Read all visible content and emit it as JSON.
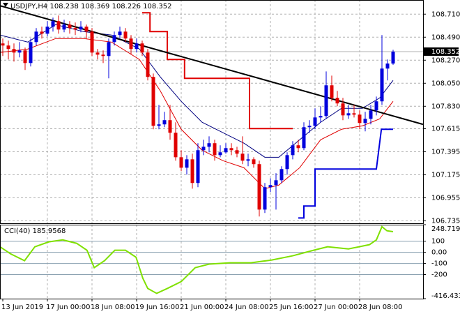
{
  "chart_data": {
    "type": "candlestick",
    "title": "USDJPY,H4",
    "up_color": "#0000dd",
    "down_color": "#e00000",
    "candles": [
      [
        108.43,
        108.477,
        108.31,
        108.41
      ],
      [
        108.41,
        108.457,
        108.277,
        108.377
      ],
      [
        108.377,
        108.43,
        108.257,
        108.343
      ],
      [
        108.343,
        108.443,
        108.297,
        108.363
      ],
      [
        108.363,
        108.39,
        108.177,
        108.243
      ],
      [
        108.243,
        108.477,
        108.21,
        108.443
      ],
      [
        108.443,
        108.577,
        108.41,
        108.543
      ],
      [
        108.543,
        108.59,
        108.477,
        108.523
      ],
      [
        108.523,
        108.643,
        108.497,
        108.59
      ],
      [
        108.59,
        108.677,
        108.543,
        108.643
      ],
      [
        108.643,
        108.697,
        108.523,
        108.563
      ],
      [
        108.563,
        108.657,
        108.537,
        108.61
      ],
      [
        108.61,
        108.643,
        108.523,
        108.577
      ],
      [
        108.577,
        108.63,
        108.51,
        108.563
      ],
      [
        108.563,
        108.643,
        108.537,
        108.59
      ],
      [
        108.59,
        108.61,
        108.477,
        108.543
      ],
      [
        108.543,
        108.577,
        108.31,
        108.343
      ],
      [
        108.343,
        108.377,
        108.277,
        108.323
      ],
      [
        108.323,
        108.363,
        108.243,
        108.31
      ],
      [
        108.31,
        108.477,
        108.097,
        108.443
      ],
      [
        108.443,
        108.543,
        108.41,
        108.51
      ],
      [
        108.51,
        108.59,
        108.477,
        108.543
      ],
      [
        108.543,
        108.577,
        108.443,
        108.477
      ],
      [
        108.477,
        108.51,
        108.323,
        108.377
      ],
      [
        108.377,
        108.477,
        108.343,
        108.43
      ],
      [
        108.43,
        108.457,
        108.31,
        108.343
      ],
      [
        108.343,
        108.377,
        108.077,
        108.11
      ],
      [
        108.11,
        108.143,
        107.61,
        107.643
      ],
      [
        107.643,
        107.843,
        107.61,
        107.657
      ],
      [
        107.657,
        107.777,
        107.63,
        107.697
      ],
      [
        107.697,
        107.843,
        107.51,
        107.577
      ],
      [
        107.577,
        107.677,
        107.31,
        107.343
      ],
      [
        107.343,
        107.41,
        107.21,
        107.243
      ],
      [
        107.243,
        107.363,
        107.177,
        107.323
      ],
      [
        107.323,
        107.377,
        107.043,
        107.097
      ],
      [
        107.097,
        107.477,
        107.057,
        107.41
      ],
      [
        107.41,
        107.51,
        107.363,
        107.443
      ],
      [
        107.443,
        107.543,
        107.39,
        107.477
      ],
      [
        107.477,
        107.51,
        107.31,
        107.363
      ],
      [
        107.363,
        107.457,
        107.343,
        107.39
      ],
      [
        107.39,
        107.477,
        107.377,
        107.43
      ],
      [
        107.43,
        107.477,
        107.363,
        107.41
      ],
      [
        107.41,
        107.443,
        107.343,
        107.377
      ],
      [
        107.377,
        107.543,
        107.277,
        107.31
      ],
      [
        107.31,
        107.377,
        107.257,
        107.323
      ],
      [
        107.323,
        107.343,
        107.243,
        107.277
      ],
      [
        107.277,
        107.31,
        106.777,
        106.843
      ],
      [
        106.843,
        107.097,
        106.81,
        107.057
      ],
      [
        107.057,
        107.143,
        107.01,
        107.077
      ],
      [
        107.077,
        107.19,
        106.843,
        107.123
      ],
      [
        107.123,
        107.257,
        107.097,
        107.23
      ],
      [
        107.23,
        107.39,
        107.177,
        107.363
      ],
      [
        107.363,
        107.497,
        107.323,
        107.457
      ],
      [
        107.457,
        107.51,
        107.39,
        107.43
      ],
      [
        107.43,
        107.677,
        107.41,
        107.63
      ],
      [
        107.63,
        107.697,
        107.577,
        107.643
      ],
      [
        107.643,
        107.81,
        107.61,
        107.723
      ],
      [
        107.723,
        107.83,
        107.677,
        107.737
      ],
      [
        107.737,
        108.163,
        107.71,
        108.03
      ],
      [
        108.03,
        108.123,
        107.877,
        107.91
      ],
      [
        107.91,
        107.977,
        107.83,
        107.857
      ],
      [
        107.857,
        107.91,
        107.697,
        107.743
      ],
      [
        107.743,
        107.843,
        107.71,
        107.763
      ],
      [
        107.763,
        107.843,
        107.723,
        107.75
      ],
      [
        107.75,
        107.79,
        107.61,
        107.67
      ],
      [
        107.67,
        107.777,
        107.59,
        107.71
      ],
      [
        107.71,
        107.843,
        107.657,
        107.79
      ],
      [
        107.79,
        107.923,
        107.743,
        107.877
      ],
      [
        107.877,
        108.51,
        107.843,
        108.19
      ],
      [
        108.19,
        108.277,
        108.077,
        108.238
      ],
      [
        108.238,
        108.369,
        108.226,
        108.352
      ]
    ],
    "xlim": [
      -0.5,
      75.375
    ],
    "xticks": [
      {
        "value": 0,
        "label": "13 Jun 2019"
      },
      {
        "value": 8,
        "label": "17 Jun 00:00"
      },
      {
        "value": 16,
        "label": "18 Jun 08:00"
      },
      {
        "value": 24,
        "label": "19 Jun 16:00"
      },
      {
        "value": 32,
        "label": "21 Jun 00:00"
      },
      {
        "value": 40,
        "label": "24 Jun 08:00"
      },
      {
        "value": 48,
        "label": "25 Jun 16:00"
      },
      {
        "value": 56,
        "label": "27 Jun 00:00"
      },
      {
        "value": 64,
        "label": "28 Jun 08:00"
      }
    ],
    "ylim": [
      106.712,
      108.845
    ],
    "yticks": [
      {
        "value": 108.71,
        "label": "108.710"
      },
      {
        "value": 108.49,
        "label": "108.490"
      },
      {
        "value": 108.27,
        "label": "108.270"
      },
      {
        "value": 108.05,
        "label": "108.050"
      },
      {
        "value": 107.83,
        "label": "107.830"
      },
      107.615,
      107.395,
      107.175,
      106.955,
      106.735
    ],
    "grid": true,
    "overlays": [
      {
        "color": "#000080",
        "line_width": 1,
        "x": [
          -0.5,
          4.5,
          9.5,
          14.5,
          19.5,
          24.5,
          28.25,
          32,
          35.75,
          39.5,
          43.25,
          47,
          49.5,
          53.25,
          57,
          60.75,
          64.5,
          67.6,
          70
        ],
        "values": [
          108.51,
          108.443,
          108.61,
          108.543,
          108.51,
          108.377,
          108.11,
          107.877,
          107.677,
          107.577,
          107.477,
          107.343,
          107.343,
          107.51,
          107.677,
          107.81,
          107.81,
          107.91,
          108.077
        ]
      },
      {
        "color": "#e00000",
        "line_width": 1,
        "x": [
          -0.5,
          4.5,
          9.5,
          14.5,
          19.5,
          24.5,
          28.25,
          32,
          35.75,
          39.5,
          43.25,
          47,
          49.5,
          53.25,
          57,
          60.75,
          64.5,
          67.6,
          70
        ],
        "values": [
          108.343,
          108.377,
          108.477,
          108.477,
          108.443,
          108.277,
          107.977,
          107.61,
          107.41,
          107.31,
          107.243,
          107.043,
          107.077,
          107.243,
          107.51,
          107.61,
          107.643,
          107.71,
          107.877
        ]
      },
      {
        "color": "#e00000",
        "line_width": 2,
        "x": [
          25,
          26.4,
          26.4,
          29.5,
          29.5,
          32.6,
          32.6,
          44.25,
          44.25,
          52
        ],
        "values": [
          108.723,
          108.723,
          108.543,
          108.543,
          108.277,
          108.277,
          108.097,
          108.097,
          107.617,
          107.617
        ]
      },
      {
        "color": "#0000dd",
        "line_width": 2,
        "x": [
          53,
          54,
          54,
          56,
          56,
          67,
          67.9,
          70
        ],
        "values": [
          106.763,
          106.763,
          106.877,
          106.877,
          107.23,
          107.23,
          107.61,
          107.61
        ]
      },
      {
        "color": "#000000",
        "line_width": 2,
        "x": [
          -0.5,
          75.375
        ],
        "values": [
          108.79,
          107.657
        ]
      }
    ],
    "cci": {
      "label": "CCI(40)",
      "color": "#7fe000",
      "x": [
        -0.5,
        1.4,
        3.9,
        5.75,
        8.25,
        10.75,
        13.25,
        15.1,
        16.4,
        18.25,
        20.1,
        22,
        23.9,
        25.1,
        26,
        27.6,
        29.5,
        32,
        34.5,
        37,
        40.75,
        44.5,
        48.25,
        52,
        55.75,
        58.25,
        62,
        65.75,
        67,
        68,
        68.9,
        70
      ],
      "values": [
        50,
        -13,
        -75,
        50,
        94,
        112,
        81,
        19,
        -138,
        -75,
        19,
        19,
        -44,
        -231,
        -325,
        -369,
        -325,
        -263,
        -138,
        -106,
        -94,
        -94,
        -69,
        -31,
        19,
        50,
        31,
        69,
        112,
        231,
        194,
        185.9568
      ],
      "y2lim": [
        -416.433,
        248.7192
      ],
      "y2ticks": [
        248.7192,
        100,
        {
          "value": 0,
          "label": "0.00"
        },
        -100,
        -200,
        -416.433
      ]
    }
  }
}
